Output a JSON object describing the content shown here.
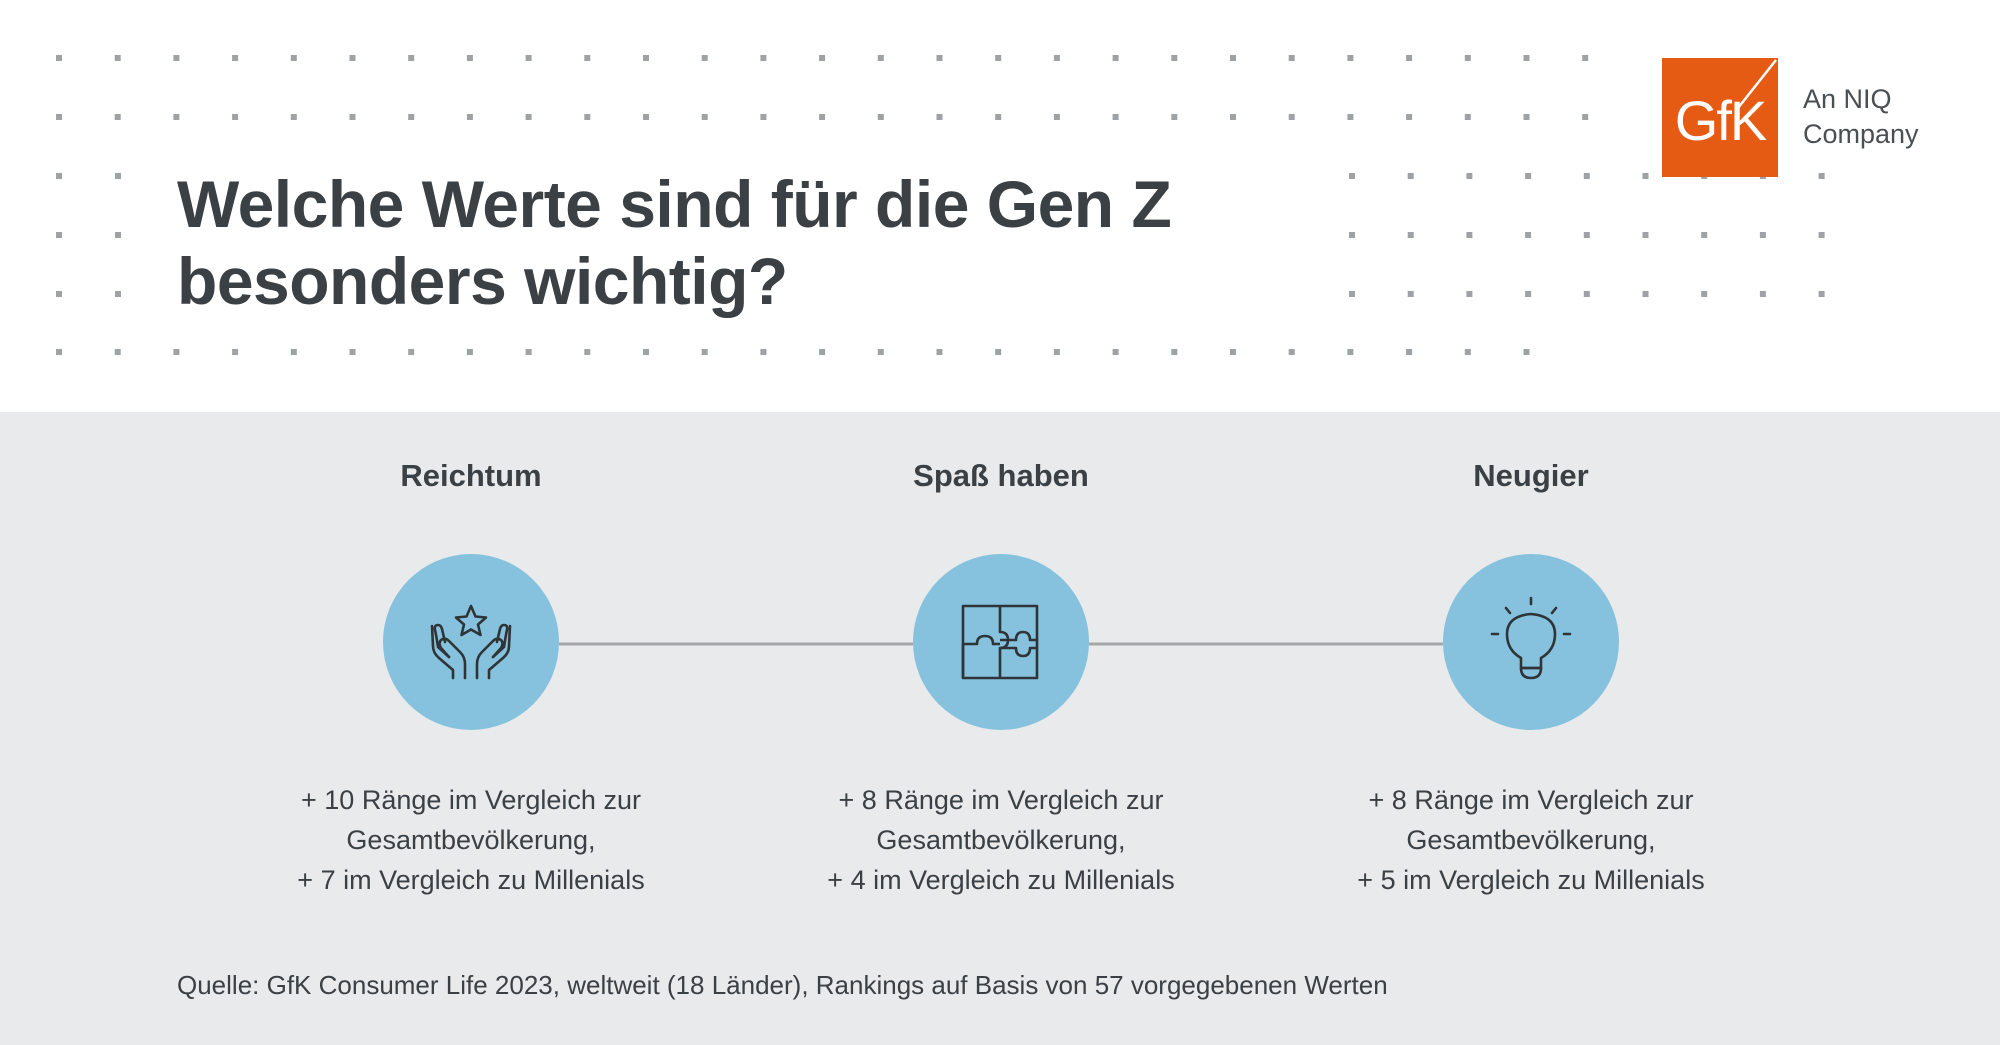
{
  "header": {
    "title_line1": "Welche Werte sind für die Gen Z",
    "title_line2": "besonders wichtig?"
  },
  "brand": {
    "logo_text": "GfK",
    "logo_color": "#e55b13",
    "tagline_line1": "An NIQ",
    "tagline_line2": "Company"
  },
  "items": [
    {
      "title": "Reichtum",
      "icon": "hands-star-icon",
      "desc_line1": "+ 10 Ränge im Vergleich zur",
      "desc_line2": "Gesamtbevölkerung,",
      "desc_line3": "+ 7 im Vergleich zu Millenials"
    },
    {
      "title": "Spaß haben",
      "icon": "puzzle-icon",
      "desc_line1": "+ 8 Ränge im Vergleich zur",
      "desc_line2": "Gesamtbevölkerung,",
      "desc_line3": "+ 4 im Vergleich zu Millenials"
    },
    {
      "title": "Neugier",
      "icon": "lightbulb-icon",
      "desc_line1": "+ 8 Ränge im Vergleich zur",
      "desc_line2": "Gesamtbevölkerung,",
      "desc_line3": "+ 5 im Vergleich zu Millenials"
    }
  ],
  "footer": {
    "source": "Quelle: GfK Consumer Life 2023, weltweit (18 Länder), Rankings auf Basis von 57 vorgegebenen Werten"
  },
  "colors": {
    "circle": "#86c2dd",
    "panel_background": "#e8eaec",
    "text": "#3b4044",
    "connector": "#a3a7aa",
    "dots": "#9ea2a5"
  }
}
